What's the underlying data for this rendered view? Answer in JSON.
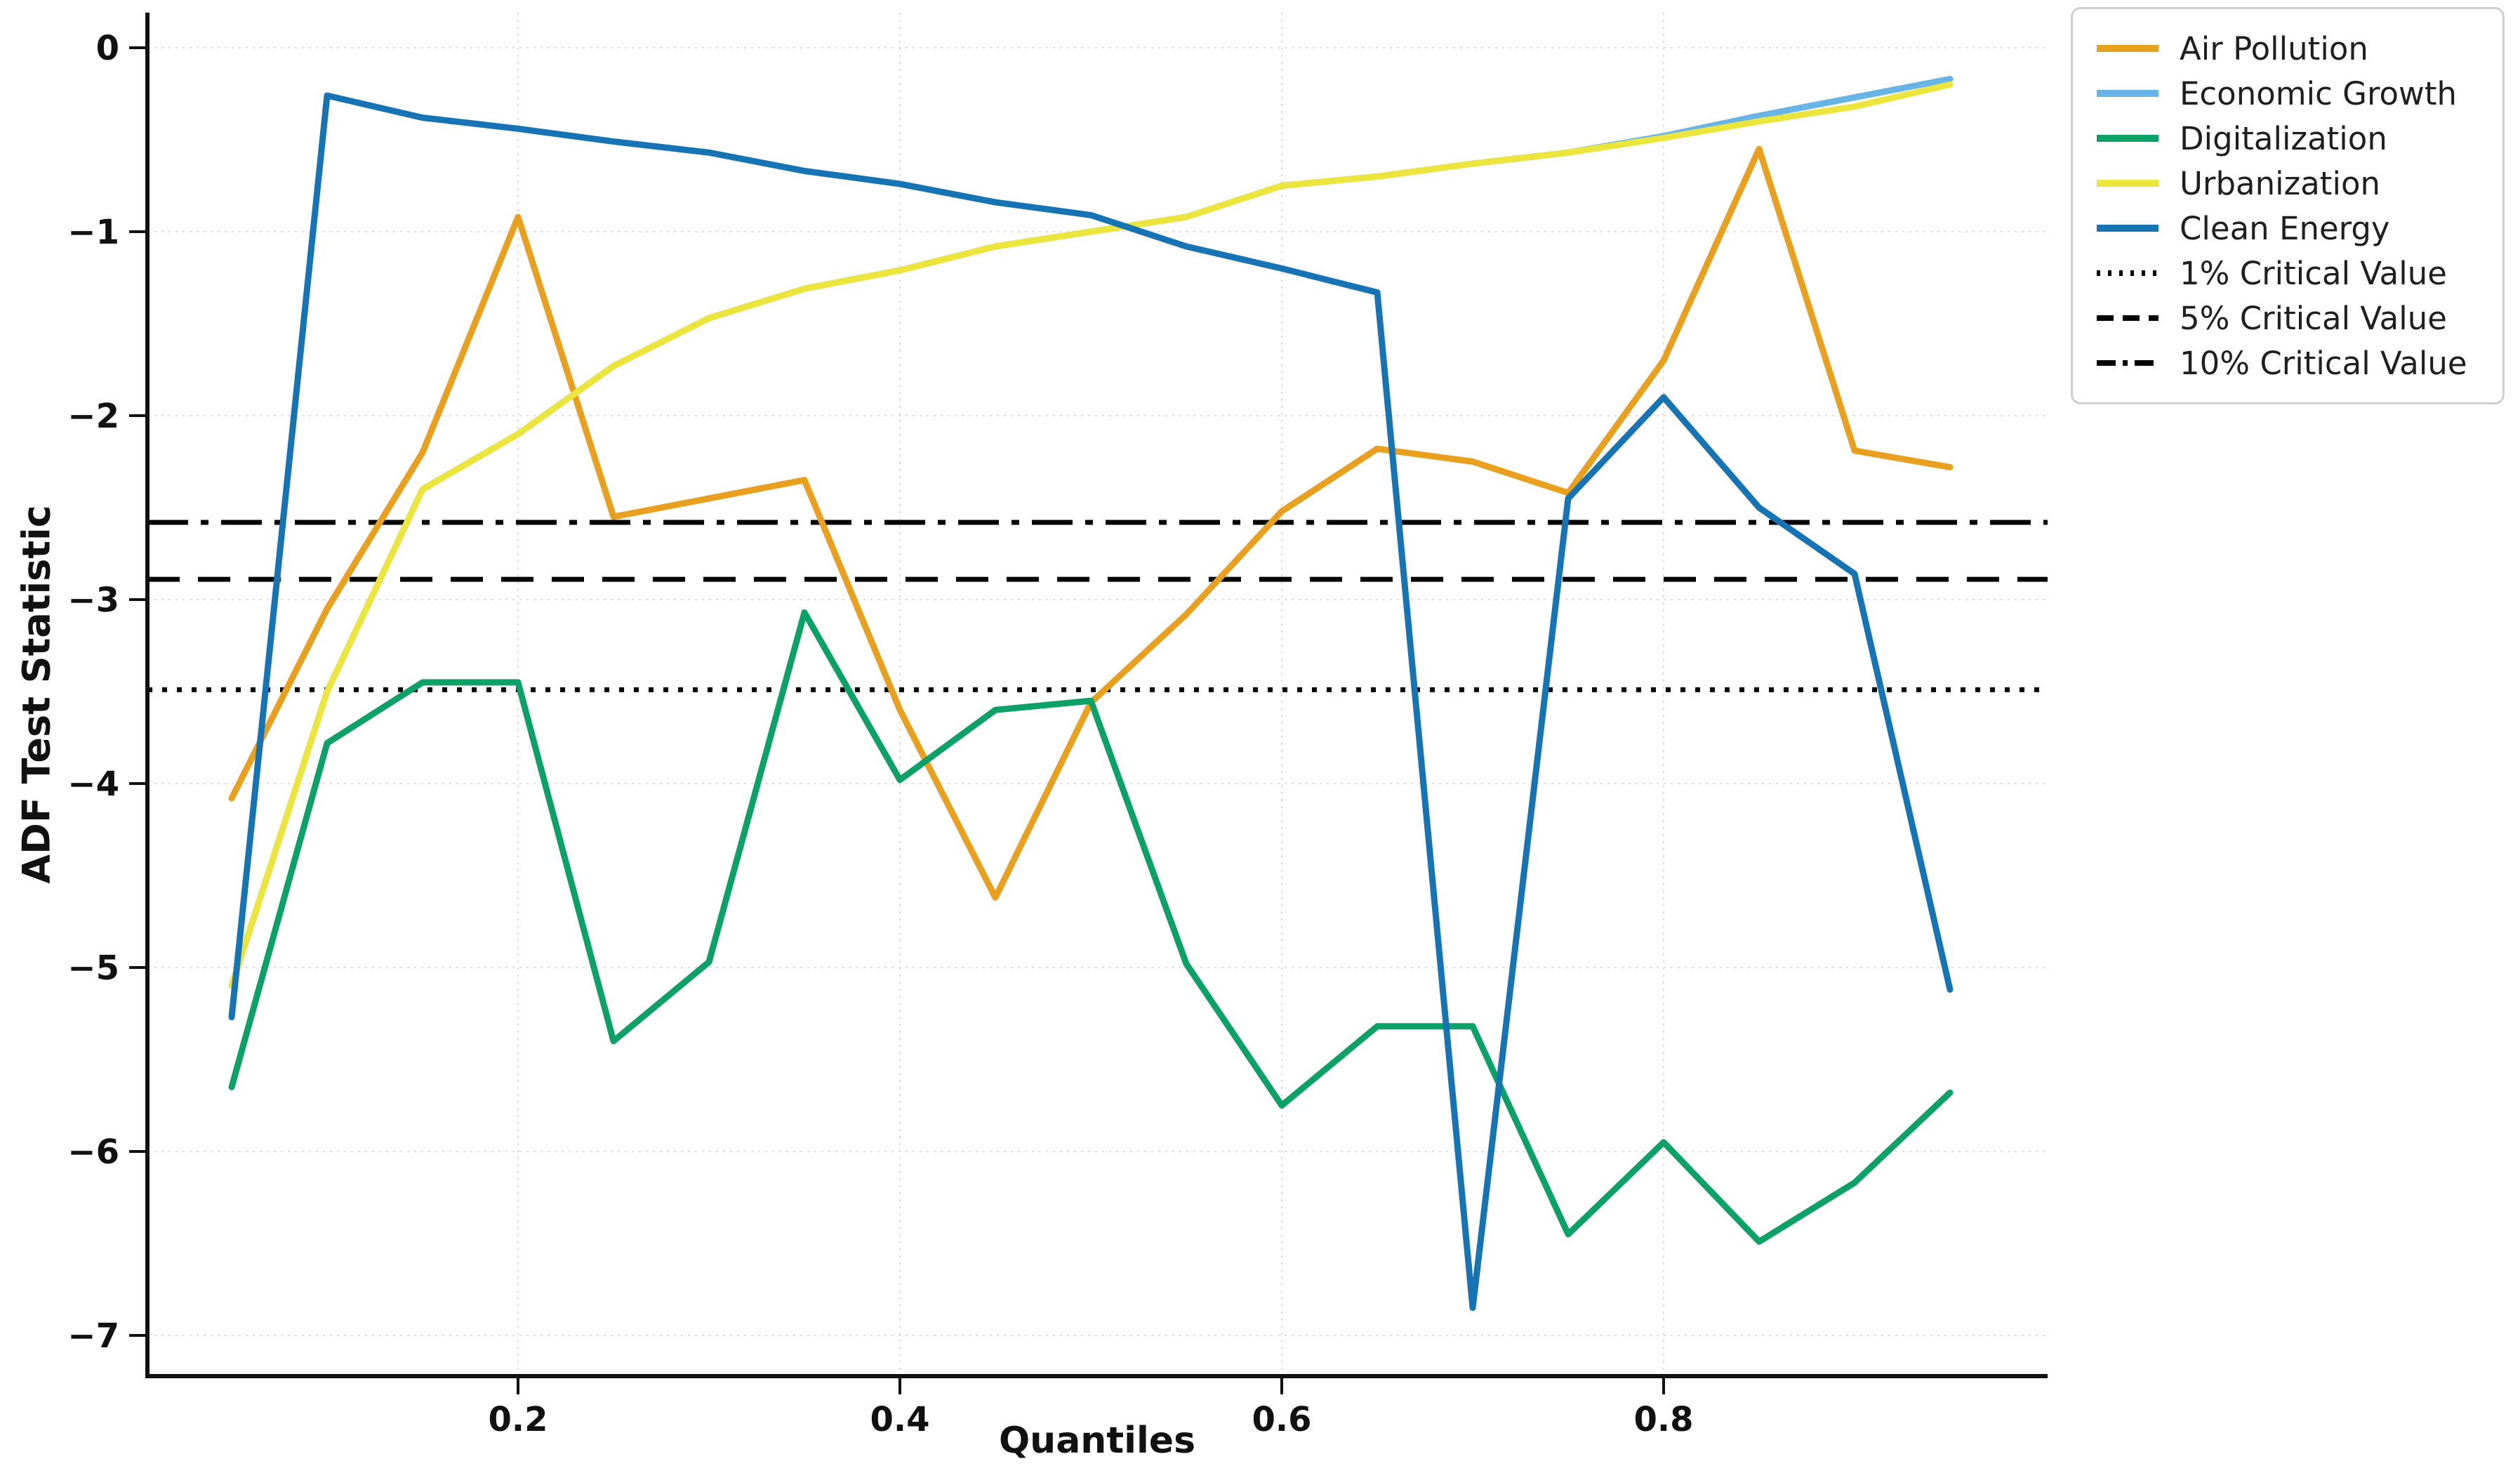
{
  "chart_data": {
    "type": "line",
    "title": "",
    "xlabel": "Quantiles",
    "ylabel": "ADF Test Statistic",
    "grid": true,
    "legend_position": "outside-upper-right",
    "xlim": [
      0.006,
      1.0
    ],
    "ylim": [
      -7.22,
      0.19
    ],
    "x_ticks": [
      "0.2",
      "0.4",
      "0.6",
      "0.8"
    ],
    "x_tick_values": [
      0.2,
      0.4,
      0.6,
      0.8
    ],
    "y_ticks": [
      "0",
      "−1",
      "−2",
      "−3",
      "−4",
      "−5",
      "−6",
      "−7"
    ],
    "y_tick_values": [
      0,
      -1,
      -2,
      -3,
      -4,
      -5,
      -6,
      -7
    ],
    "x": [
      0.05,
      0.1,
      0.15,
      0.2,
      0.25,
      0.3,
      0.35,
      0.4,
      0.45,
      0.5,
      0.55,
      0.6,
      0.65,
      0.7,
      0.75,
      0.8,
      0.85,
      0.9,
      0.95
    ],
    "series": [
      {
        "name": "Air Pollution",
        "color": "#e8a01e",
        "style": "solid",
        "values": [
          -4.08,
          -3.05,
          -2.2,
          -0.92,
          -2.55,
          -2.45,
          -2.35,
          -3.6,
          -4.62,
          -3.56,
          -3.08,
          -2.52,
          -2.18,
          -2.25,
          -2.42,
          -1.7,
          -0.55,
          -2.19,
          -2.28
        ]
      },
      {
        "name": "Economic Growth",
        "color": "#66b5e6",
        "style": "solid",
        "values": [
          -5.1,
          -3.5,
          -2.4,
          -2.1,
          -1.73,
          -1.47,
          -1.31,
          -1.21,
          -1.08,
          -1.0,
          -0.92,
          -0.75,
          -0.7,
          -0.63,
          -0.57,
          -0.48,
          -0.37,
          -0.27,
          -0.17
        ]
      },
      {
        "name": "Digitalization",
        "color": "#0ca167",
        "style": "solid",
        "values": [
          -5.65,
          -3.78,
          -3.45,
          -3.45,
          -5.4,
          -4.97,
          -3.07,
          -3.98,
          -3.6,
          -3.55,
          -4.98,
          -5.75,
          -5.32,
          -5.32,
          -6.45,
          -5.95,
          -6.49,
          -6.17,
          -5.68
        ]
      },
      {
        "name": "Urbanization",
        "color": "#ece63c",
        "style": "solid",
        "values": [
          -5.1,
          -3.5,
          -2.4,
          -2.1,
          -1.73,
          -1.47,
          -1.31,
          -1.21,
          -1.08,
          -1.0,
          -0.92,
          -0.75,
          -0.7,
          -0.63,
          -0.57,
          -0.49,
          -0.4,
          -0.32,
          -0.2
        ]
      },
      {
        "name": "Clean Energy",
        "color": "#1674b4",
        "style": "solid",
        "values": [
          -5.27,
          -0.26,
          -0.38,
          -0.44,
          -0.51,
          -0.57,
          -0.67,
          -0.74,
          -0.84,
          -0.91,
          -1.08,
          -1.2,
          -1.33,
          -6.85,
          -2.45,
          -1.9,
          -2.5,
          -2.86,
          -5.12
        ]
      }
    ],
    "reference_lines": [
      {
        "name": "1% Critical Value",
        "value": -3.49,
        "style": "dotted",
        "color": "#000000"
      },
      {
        "name": "5% Critical Value",
        "value": -2.89,
        "style": "dashed",
        "color": "#000000"
      },
      {
        "name": "10% Critical Value",
        "value": -2.58,
        "style": "dashdot",
        "color": "#000000"
      }
    ]
  }
}
